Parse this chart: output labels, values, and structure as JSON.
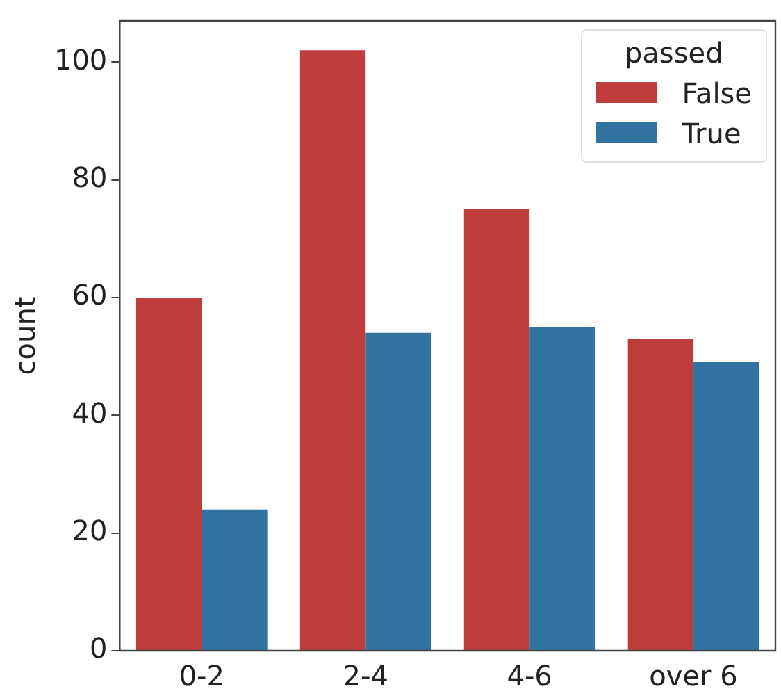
{
  "chart_data": {
    "type": "bar",
    "ylabel": "count",
    "legend_title": "passed",
    "categories": [
      "0-2",
      "2-4",
      "4-6",
      "over 6"
    ],
    "series": [
      {
        "name": "False",
        "color": "#c03d3e",
        "values": [
          60,
          102,
          75,
          53
        ]
      },
      {
        "name": "True",
        "color": "#3274a1",
        "values": [
          24,
          54,
          55,
          49
        ]
      }
    ],
    "ylim": [
      0,
      107
    ],
    "yticks": [
      0,
      20,
      40,
      60,
      80,
      100
    ],
    "grid": false,
    "legend": "top right"
  }
}
